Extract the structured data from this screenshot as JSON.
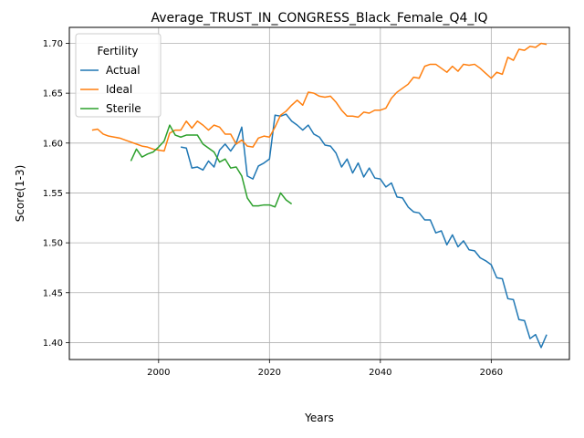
{
  "chart_data": {
    "type": "line",
    "title": "Average_TRUST_IN_CONGRESS_Black_Female_Q4_IQ",
    "xlabel": "Years",
    "ylabel": "Score(1-3)",
    "xlim": [
      1983.9,
      2074.1
    ],
    "ylim": [
      1.383,
      1.716
    ],
    "xticks": [
      2000,
      2020,
      2040,
      2060
    ],
    "yticks": [
      1.4,
      1.45,
      1.5,
      1.55,
      1.6,
      1.65,
      1.7
    ],
    "ytick_labels": [
      "1.40",
      "1.45",
      "1.50",
      "1.55",
      "1.60",
      "1.65",
      "1.70"
    ],
    "grid": true,
    "legend": {
      "title": "Fertility",
      "position": "top-left"
    },
    "series": [
      {
        "name": "Actual",
        "color": "#1f77b4",
        "x": [
          2004,
          2005,
          2006,
          2007,
          2008,
          2009,
          2010,
          2011,
          2012,
          2013,
          2014,
          2015,
          2016,
          2017,
          2018,
          2019,
          2020,
          2021,
          2022,
          2023,
          2024,
          2025,
          2026,
          2027,
          2028,
          2029,
          2030,
          2031,
          2032,
          2033,
          2034,
          2035,
          2036,
          2037,
          2038,
          2039,
          2040,
          2041,
          2042,
          2043,
          2044,
          2045,
          2046,
          2047,
          2048,
          2049,
          2050,
          2051,
          2052,
          2053,
          2054,
          2055,
          2056,
          2057,
          2058,
          2059,
          2060,
          2061,
          2062,
          2063,
          2064,
          2065,
          2066,
          2067,
          2068,
          2069,
          2070
        ],
        "y": [
          1.596,
          1.595,
          1.575,
          1.576,
          1.573,
          1.582,
          1.576,
          1.593,
          1.599,
          1.592,
          1.6,
          1.616,
          1.567,
          1.564,
          1.577,
          1.58,
          1.584,
          1.628,
          1.627,
          1.629,
          1.622,
          1.618,
          1.613,
          1.618,
          1.609,
          1.606,
          1.598,
          1.597,
          1.59,
          1.576,
          1.584,
          1.57,
          1.58,
          1.566,
          1.575,
          1.565,
          1.564,
          1.556,
          1.56,
          1.546,
          1.545,
          1.536,
          1.531,
          1.53,
          1.523,
          1.523,
          1.51,
          1.512,
          1.498,
          1.508,
          1.496,
          1.502,
          1.493,
          1.492,
          1.485,
          1.482,
          1.478,
          1.465,
          1.464,
          1.444,
          1.443,
          1.423,
          1.422,
          1.404,
          1.408,
          1.395,
          1.408
        ]
      },
      {
        "name": "Ideal",
        "color": "#ff7f0e",
        "x": [
          1988,
          1989,
          1990,
          1991,
          1992,
          1993,
          1994,
          1995,
          1996,
          1997,
          1998,
          1999,
          2000,
          2001,
          2002,
          2003,
          2004,
          2005,
          2006,
          2007,
          2008,
          2009,
          2010,
          2011,
          2012,
          2013,
          2014,
          2015,
          2016,
          2017,
          2018,
          2019,
          2020,
          2021,
          2022,
          2023,
          2024,
          2025,
          2026,
          2027,
          2028,
          2029,
          2030,
          2031,
          2032,
          2033,
          2034,
          2035,
          2036,
          2037,
          2038,
          2039,
          2040,
          2041,
          2042,
          2043,
          2044,
          2045,
          2046,
          2047,
          2048,
          2049,
          2050,
          2051,
          2052,
          2053,
          2054,
          2055,
          2056,
          2057,
          2058,
          2059,
          2060,
          2061,
          2062,
          2063,
          2064,
          2065,
          2066,
          2067,
          2068,
          2069,
          2070
        ],
        "y": [
          1.613,
          1.614,
          1.609,
          1.607,
          1.606,
          1.605,
          1.603,
          1.601,
          1.599,
          1.597,
          1.596,
          1.594,
          1.593,
          1.592,
          1.61,
          1.613,
          1.613,
          1.622,
          1.615,
          1.622,
          1.618,
          1.613,
          1.618,
          1.616,
          1.609,
          1.609,
          1.599,
          1.603,
          1.597,
          1.596,
          1.605,
          1.607,
          1.606,
          1.616,
          1.628,
          1.632,
          1.638,
          1.643,
          1.638,
          1.651,
          1.65,
          1.647,
          1.646,
          1.647,
          1.641,
          1.633,
          1.627,
          1.627,
          1.626,
          1.631,
          1.63,
          1.633,
          1.633,
          1.635,
          1.645,
          1.651,
          1.655,
          1.659,
          1.666,
          1.665,
          1.677,
          1.679,
          1.679,
          1.675,
          1.671,
          1.677,
          1.672,
          1.679,
          1.678,
          1.679,
          1.675,
          1.67,
          1.665,
          1.671,
          1.669,
          1.686,
          1.683,
          1.694,
          1.693,
          1.697,
          1.696,
          1.7,
          1.699
        ]
      },
      {
        "name": "Sterile",
        "color": "#2ca02c",
        "x": [
          1995,
          1996,
          1997,
          1998,
          1999,
          2000,
          2001,
          2002,
          2003,
          2004,
          2005,
          2006,
          2007,
          2008,
          2009,
          2010,
          2011,
          2012,
          2013,
          2014,
          2015,
          2016,
          2017,
          2018,
          2019,
          2020,
          2021,
          2022,
          2023,
          2024
        ],
        "y": [
          1.582,
          1.594,
          1.586,
          1.589,
          1.591,
          1.596,
          1.602,
          1.618,
          1.608,
          1.606,
          1.608,
          1.608,
          1.608,
          1.599,
          1.595,
          1.591,
          1.581,
          1.584,
          1.575,
          1.576,
          1.567,
          1.545,
          1.537,
          1.537,
          1.538,
          1.538,
          1.536,
          1.55,
          1.543,
          1.539
        ]
      }
    ]
  }
}
